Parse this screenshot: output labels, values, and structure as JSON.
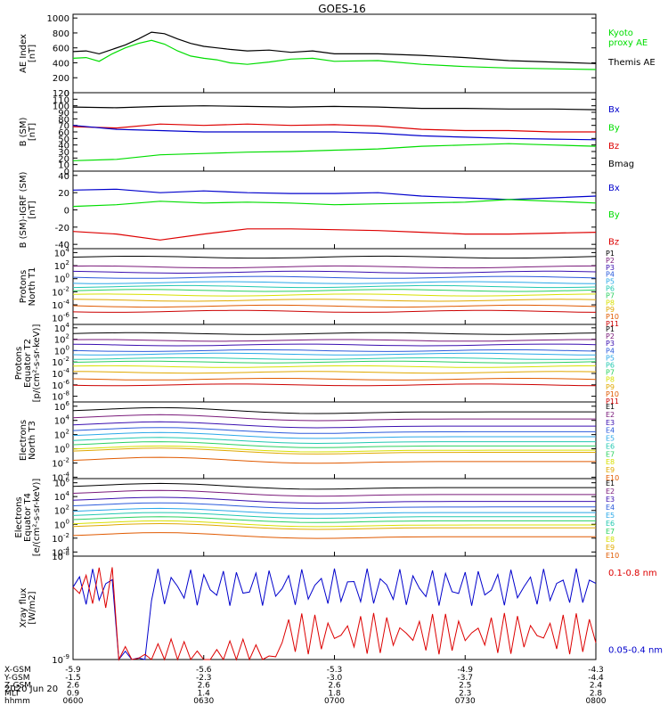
{
  "title": "GOES-16",
  "colors": {
    "black": "#000000",
    "green": "#00dd00",
    "blue": "#0000cc",
    "red": "#dd0000",
    "p": [
      "#000000",
      "#7a1a7a",
      "#3a0fb0",
      "#2b5bdc",
      "#2aa8e8",
      "#22c8b0",
      "#2bd060",
      "#d7e000",
      "#e0a800",
      "#e05a00",
      "#cc0000"
    ]
  },
  "chart_data": [
    {
      "id": "ae",
      "type": "line",
      "ylabel": [
        "AE Index",
        "[nT]"
      ],
      "yticks": [
        "0",
        "200",
        "400",
        "600",
        "800",
        "1000"
      ],
      "ylim": [
        0,
        1050
      ],
      "legend": [
        {
          "text": "Kyoto",
          "color": "green"
        },
        {
          "text": "proxy AE",
          "color": "green"
        },
        {
          "text": "Themis AE",
          "color": "black"
        }
      ],
      "series": [
        {
          "color": "black",
          "x": [
            0,
            3,
            6,
            9,
            12,
            15,
            18,
            21,
            24,
            27,
            30,
            33,
            36,
            40,
            45,
            50,
            55,
            60,
            70,
            80,
            90,
            100,
            110,
            120
          ],
          "y": [
            550,
            560,
            520,
            580,
            640,
            720,
            810,
            790,
            720,
            660,
            620,
            600,
            580,
            560,
            570,
            540,
            560,
            520,
            520,
            500,
            470,
            430,
            410,
            390
          ]
        },
        {
          "color": "green",
          "x": [
            0,
            3,
            6,
            9,
            12,
            15,
            18,
            21,
            24,
            27,
            30,
            33,
            36,
            40,
            45,
            50,
            55,
            60,
            70,
            80,
            90,
            100,
            110,
            120
          ],
          "y": [
            460,
            470,
            420,
            520,
            600,
            660,
            700,
            650,
            560,
            490,
            460,
            440,
            400,
            380,
            410,
            450,
            460,
            420,
            430,
            380,
            350,
            330,
            320,
            310
          ]
        }
      ]
    },
    {
      "id": "bsm",
      "type": "line",
      "ylabel": [
        "B (SM)",
        "[nT]"
      ],
      "yticks": [
        "0",
        "10",
        "20",
        "30",
        "40",
        "50",
        "60",
        "70",
        "80",
        "90",
        "100",
        "110",
        "120"
      ],
      "ylim": [
        0,
        120
      ],
      "legend": [
        {
          "text": "Bx",
          "color": "blue"
        },
        {
          "text": "By",
          "color": "green"
        },
        {
          "text": "Bz",
          "color": "red"
        },
        {
          "text": "Bmag",
          "color": "black"
        }
      ],
      "series": [
        {
          "color": "black",
          "x": [
            0,
            10,
            20,
            30,
            40,
            50,
            60,
            70,
            80,
            90,
            100,
            110,
            120
          ],
          "y": [
            98,
            97,
            99,
            100,
            99,
            98,
            99,
            98,
            96,
            96,
            95,
            95,
            94
          ]
        },
        {
          "color": "red",
          "x": [
            0,
            10,
            20,
            30,
            40,
            50,
            60,
            70,
            80,
            90,
            100,
            110,
            120
          ],
          "y": [
            68,
            66,
            72,
            70,
            72,
            70,
            71,
            69,
            64,
            62,
            62,
            60,
            60
          ]
        },
        {
          "color": "blue",
          "x": [
            0,
            10,
            20,
            30,
            40,
            50,
            60,
            70,
            80,
            90,
            100,
            110,
            120
          ],
          "y": [
            70,
            64,
            62,
            60,
            60,
            60,
            60,
            58,
            54,
            52,
            50,
            49,
            48
          ]
        },
        {
          "color": "green",
          "x": [
            0,
            10,
            20,
            30,
            40,
            50,
            60,
            70,
            80,
            90,
            100,
            110,
            120
          ],
          "y": [
            16,
            18,
            25,
            27,
            29,
            30,
            32,
            34,
            38,
            40,
            42,
            40,
            38
          ]
        }
      ]
    },
    {
      "id": "bigrf",
      "type": "line",
      "ylabel": [
        "B (SM)-IGRF (SM)",
        "[nT]"
      ],
      "yticks": [
        "-40",
        "-20",
        "0",
        "20",
        "40"
      ],
      "ylim": [
        -45,
        45
      ],
      "legend": [
        {
          "text": "Bx",
          "color": "blue"
        },
        {
          "text": "By",
          "color": "green"
        },
        {
          "text": "Bz",
          "color": "red"
        }
      ],
      "series": [
        {
          "color": "blue",
          "x": [
            0,
            10,
            20,
            30,
            40,
            50,
            60,
            70,
            80,
            90,
            100,
            110,
            120
          ],
          "y": [
            23,
            24,
            20,
            22,
            20,
            19,
            19,
            20,
            16,
            14,
            12,
            14,
            16
          ]
        },
        {
          "color": "green",
          "x": [
            0,
            10,
            20,
            30,
            40,
            50,
            60,
            70,
            80,
            90,
            100,
            110,
            120
          ],
          "y": [
            4,
            6,
            10,
            8,
            9,
            8,
            6,
            7,
            8,
            9,
            12,
            10,
            8
          ]
        },
        {
          "color": "red",
          "x": [
            0,
            10,
            20,
            30,
            40,
            50,
            60,
            70,
            80,
            90,
            100,
            110,
            120
          ],
          "y": [
            -25,
            -28,
            -35,
            -28,
            -22,
            -22,
            -23,
            -24,
            -26,
            -28,
            -28,
            -27,
            -26
          ]
        }
      ]
    },
    {
      "id": "pn",
      "type": "line",
      "log": true,
      "ylabel": [
        "Protons",
        "North T1"
      ],
      "yticks": [
        {
          "m": "10",
          "e": "4"
        },
        {
          "m": "10",
          "e": "2"
        },
        {
          "m": "10",
          "e": "0"
        },
        {
          "m": "10",
          "e": "-2"
        },
        {
          "m": "10",
          "e": "-4"
        },
        {
          "m": "10",
          "e": "-6"
        }
      ],
      "ylim": [
        -7,
        4.6
      ],
      "levels": [
        3.3,
        1.8,
        1.0,
        0.2,
        -0.6,
        -1.2,
        -1.8,
        -2.5,
        -3.3,
        -4.2,
        -5.0
      ],
      "labels": [
        "P1",
        "P2",
        "P3",
        "P4",
        "P5",
        "P6",
        "P7",
        "P8",
        "P9",
        "P10",
        "P11"
      ]
    },
    {
      "id": "pe",
      "type": "line",
      "log": true,
      "ylabel": [
        "Protons",
        "Equator T2",
        "[p/(cm²-s-sr-keV)]"
      ],
      "yticks": [
        {
          "m": "10",
          "e": "4"
        },
        {
          "m": "10",
          "e": "2"
        },
        {
          "m": "10",
          "e": "0"
        },
        {
          "m": "10",
          "e": "-2"
        },
        {
          "m": "10",
          "e": "-4"
        },
        {
          "m": "10",
          "e": "-6"
        },
        {
          "m": "10",
          "e": "-8"
        }
      ],
      "ylim": [
        -9,
        4.6
      ],
      "levels": [
        3.0,
        1.8,
        1.0,
        0.0,
        -0.6,
        -1.4,
        -2.0,
        -2.8,
        -3.8,
        -5.0,
        -6.0
      ],
      "labels": [
        "P1",
        "P2",
        "P3",
        "P4",
        "P5",
        "P6",
        "P7",
        "P8",
        "P9",
        "P10",
        "P11"
      ]
    },
    {
      "id": "en",
      "type": "line",
      "log": true,
      "ylabel": [
        "Electrons",
        "North T3"
      ],
      "yticks": [
        {
          "m": "10",
          "e": "6"
        },
        {
          "m": "10",
          "e": "4"
        },
        {
          "m": "10",
          "e": "2"
        },
        {
          "m": "10",
          "e": "0"
        },
        {
          "m": "10",
          "e": "-2"
        },
        {
          "m": "10",
          "e": "-4"
        }
      ],
      "ylim": [
        -4.2,
        6.6
      ],
      "levels": [
        5.2,
        4.2,
        3.2,
        2.4,
        1.7,
        1.0,
        0.4,
        -0.2,
        -0.5,
        -1.8
      ],
      "labels": [
        "E1",
        "E2",
        "E3",
        "E4",
        "E5",
        "E6",
        "E7",
        "E8",
        "E9",
        "E10"
      ]
    },
    {
      "id": "ee",
      "type": "line",
      "log": true,
      "ylabel": [
        "Electrons",
        "Equator T4",
        "[e/(cm²-s-sr-keV)]"
      ],
      "yticks": [
        {
          "m": "10",
          "e": "6"
        },
        {
          "m": "10",
          "e": "4"
        },
        {
          "m": "10",
          "e": "2"
        },
        {
          "m": "10",
          "e": "0"
        },
        {
          "m": "10",
          "e": "-2"
        },
        {
          "m": "10",
          "e": "-4"
        }
      ],
      "ylim": [
        -4.6,
        6.6
      ],
      "levels": [
        5.3,
        4.3,
        3.3,
        2.5,
        1.7,
        1.1,
        0.5,
        -0.1,
        -0.5,
        -1.8
      ],
      "labels": [
        "E1",
        "E2",
        "E3",
        "E4",
        "E5",
        "E6",
        "E7",
        "E8",
        "E9",
        "E10"
      ]
    },
    {
      "id": "xray",
      "type": "line",
      "log": true,
      "ylabel": [
        "Xray flux",
        "[W/m2]"
      ],
      "yticks": [
        {
          "m": "10",
          "e": "-8"
        },
        {
          "m": "10",
          "e": "-9"
        }
      ],
      "ylim": [
        -9,
        -8
      ],
      "legend": [
        {
          "text": "0.1-0.8 nm",
          "color": "red"
        },
        {
          "text": "0.05-0.4 nm",
          "color": "blue"
        }
      ]
    }
  ],
  "xaxis": {
    "rows": [
      {
        "label": "X-GSM",
        "values": [
          "-5.9",
          "-5.6",
          "-5.3",
          "-4.9",
          "-4.3"
        ]
      },
      {
        "label": "Y-GSM",
        "values": [
          "-1.5",
          "-2.3",
          "-3.0",
          "-3.7",
          "-4.4"
        ]
      },
      {
        "label": "Z-GSM",
        "values": [
          "2.6",
          "2.6",
          "2.6",
          "2.5",
          "2.4"
        ]
      },
      {
        "label": "MLT",
        "values": [
          "0.9",
          "1.4",
          "1.8",
          "2.3",
          "2.8"
        ]
      },
      {
        "label": "hhmm",
        "values": [
          "0600",
          "0630",
          "0700",
          "0730",
          "0800"
        ]
      }
    ],
    "date": "2020 Jun 20"
  }
}
